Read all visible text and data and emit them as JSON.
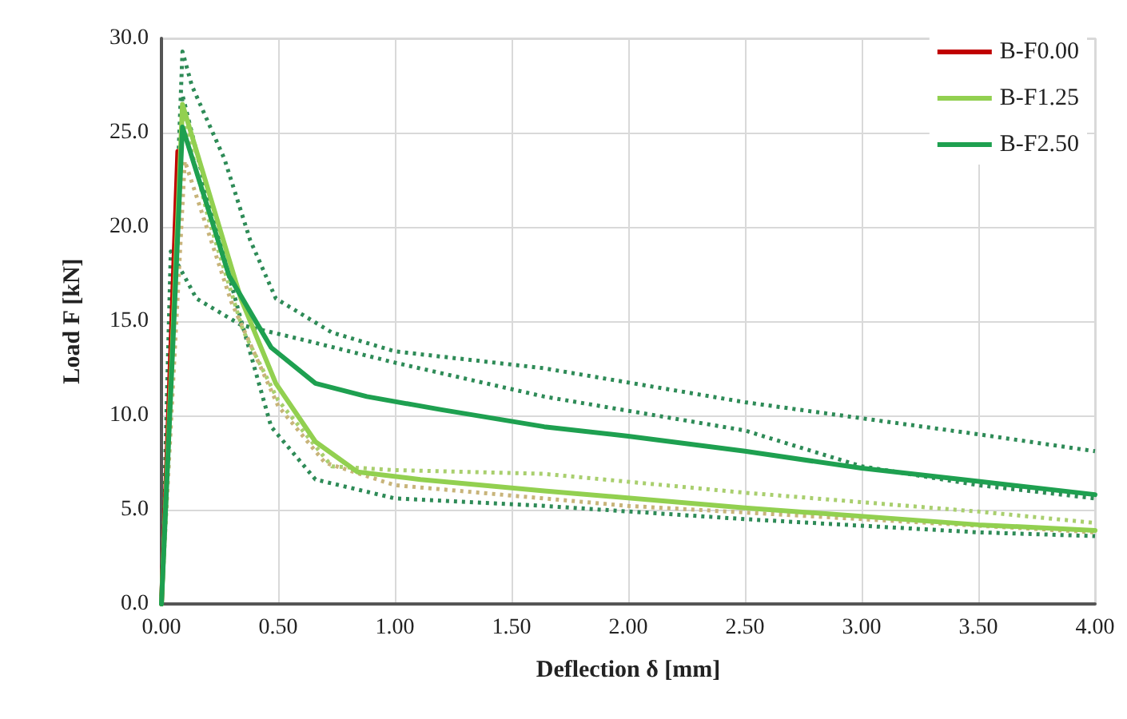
{
  "chart_data": {
    "type": "line",
    "xlabel": "Deflection δ [mm]",
    "ylabel": "Load F [kN]",
    "xlim": [
      0,
      4
    ],
    "ylim": [
      0,
      30
    ],
    "xticks": [
      {
        "value": 0,
        "label": "0.00"
      },
      {
        "value": 0.5,
        "label": "0.50"
      },
      {
        "value": 1,
        "label": "1.00"
      },
      {
        "value": 1.5,
        "label": "1.50"
      },
      {
        "value": 2,
        "label": "2.00"
      },
      {
        "value": 2.5,
        "label": "2.50"
      },
      {
        "value": 3,
        "label": "3.00"
      },
      {
        "value": 3.5,
        "label": "3.50"
      },
      {
        "value": 4,
        "label": "4.00"
      }
    ],
    "yticks": [
      {
        "value": 0,
        "label": "0.0"
      },
      {
        "value": 5,
        "label": "5.0"
      },
      {
        "value": 10,
        "label": "10.0"
      },
      {
        "value": 15,
        "label": "15.0"
      },
      {
        "value": 20,
        "label": "20.0"
      },
      {
        "value": 25,
        "label": "25.0"
      },
      {
        "value": 30,
        "label": "30.0"
      }
    ],
    "grid": true,
    "legend": "top right",
    "marker": "none",
    "series": [
      {
        "color": "#2e8b57",
        "line_style": "dotted",
        "x": [
          0,
          0.09,
          0.13,
          0.27,
          0.38,
          0.49,
          0.73,
          1.0,
          1.64,
          2.5,
          3.5,
          4.0
        ],
        "values": [
          0,
          29.3,
          27.5,
          23.6,
          19.3,
          16.2,
          14.4,
          13.4,
          12.5,
          10.7,
          9.0,
          8.1
        ]
      },
      {
        "color": "#2e8b57",
        "line_style": "dotted",
        "x": [
          0,
          0.04,
          0.15,
          0.34,
          0.61,
          1.0,
          1.64,
          2.5,
          3.0,
          3.5,
          4.0
        ],
        "values": [
          0,
          18.7,
          16.2,
          14.8,
          14.0,
          12.8,
          11.0,
          9.2,
          7.3,
          6.3,
          5.6
        ]
      },
      {
        "color": "#2e8b57",
        "line_style": "dotted",
        "x": [
          0,
          0.09,
          0.2,
          0.34,
          0.47,
          0.66,
          1.0,
          1.64,
          2.5,
          3.5,
          4.0
        ],
        "values": [
          0,
          27.0,
          21.5,
          15.1,
          9.4,
          6.6,
          5.6,
          5.2,
          4.5,
          3.8,
          3.6
        ]
      },
      {
        "color": "#a9cf6e",
        "line_style": "dotted",
        "x": [
          0,
          0.09,
          0.2,
          0.35,
          0.5,
          0.73,
          1.0,
          1.64,
          2.5,
          3.5,
          4.0
        ],
        "values": [
          0,
          26.0,
          20.5,
          14.5,
          10.8,
          7.3,
          7.1,
          6.9,
          5.9,
          4.9,
          4.3
        ]
      },
      {
        "color": "#c8b47a",
        "line_style": "dotted",
        "x": [
          0,
          0.1,
          0.3,
          0.5,
          0.7,
          1.0,
          2.0,
          3.0,
          4.0
        ],
        "values": [
          0,
          23.5,
          16.0,
          10.5,
          7.5,
          6.3,
          5.2,
          4.5,
          3.8
        ]
      },
      {
        "name": "B-F0.00",
        "color": "#c00000",
        "line_style": "solid",
        "x": [
          0,
          0.03,
          0.07
        ],
        "values": [
          0,
          10,
          24
        ]
      },
      {
        "name": "B-F1.25",
        "color": "#92d050",
        "line_style": "solid",
        "x": [
          0,
          0.09,
          0.34,
          0.49,
          0.66,
          0.84,
          1.11,
          1.64,
          2.5,
          3.5,
          4.0
        ],
        "values": [
          0,
          26.5,
          16.2,
          11.7,
          8.6,
          7.0,
          6.6,
          6.0,
          5.1,
          4.2,
          3.9
        ]
      },
      {
        "name": "B-F2.50",
        "color": "#1ea050",
        "line_style": "solid",
        "x": [
          0,
          0.09,
          0.29,
          0.47,
          0.66,
          0.88,
          1.2,
          1.64,
          2.0,
          2.5,
          3.0,
          3.5,
          4.0
        ],
        "values": [
          0,
          25.3,
          17.4,
          13.6,
          11.7,
          11.0,
          10.3,
          9.4,
          8.9,
          8.1,
          7.2,
          6.5,
          5.8
        ]
      }
    ]
  }
}
